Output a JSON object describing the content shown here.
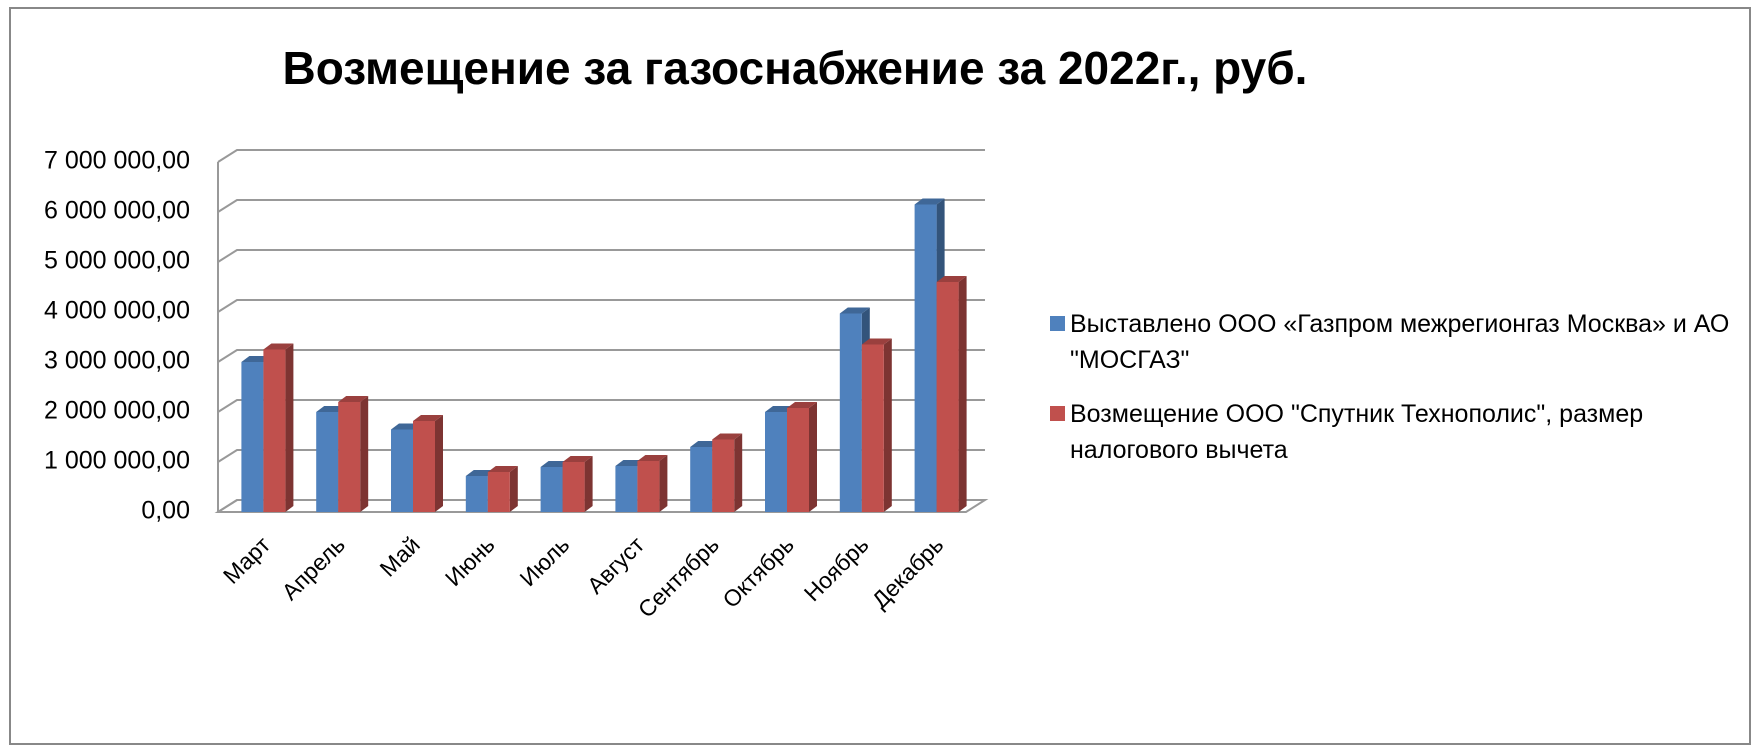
{
  "chart_data": {
    "type": "bar",
    "title": "Возмещение за газоснабжение за 2022г., руб.",
    "categories": [
      "Март",
      "Апрель",
      "Май",
      "Июнь",
      "Июль",
      "Август",
      "Сентябрь",
      "Октябрь",
      "Ноябрь",
      "Декабрь"
    ],
    "series": [
      {
        "name": "Выставлено ООО «Газпром межрегионгаз Москва» и АО \"МОСГАЗ\"",
        "color": "#4f81bd",
        "values": [
          3000000,
          2000000,
          1650000,
          720000,
          900000,
          920000,
          1300000,
          2000000,
          3970000,
          6150000
        ]
      },
      {
        "name": "Возмещение ООО \"Спутник Технополис\", размер налогового вычета",
        "color": "#c0504d",
        "values": [
          3250000,
          2200000,
          1820000,
          800000,
          1000000,
          1020000,
          1450000,
          2080000,
          3350000,
          4600000
        ]
      }
    ],
    "ylim": [
      0,
      7000000
    ],
    "yticks": [
      {
        "value": 0,
        "label": "0,00"
      },
      {
        "value": 1000000,
        "label": "1 000 000,00"
      },
      {
        "value": 2000000,
        "label": "2 000 000,00"
      },
      {
        "value": 3000000,
        "label": "3 000 000,00"
      },
      {
        "value": 4000000,
        "label": "4 000 000,00"
      },
      {
        "value": 5000000,
        "label": "5 000 000,00"
      },
      {
        "value": 6000000,
        "label": "6 000 000,00"
      },
      {
        "value": 7000000,
        "label": "7 000 000,00"
      }
    ],
    "grid": true,
    "legend": "right"
  }
}
